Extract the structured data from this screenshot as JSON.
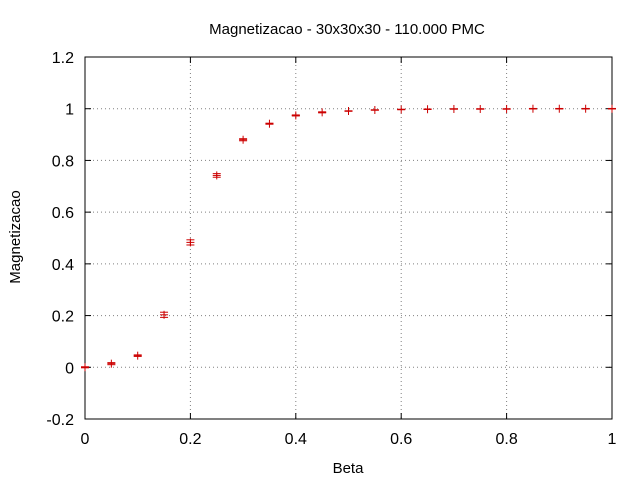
{
  "chart_data": {
    "type": "scatter",
    "title": "Magnetizacao - 30x30x30 - 110.000 PMC",
    "xlabel": "Beta",
    "ylabel": "Magnetizacao",
    "xlim": [
      0,
      1
    ],
    "ylim": [
      -0.2,
      1.2
    ],
    "x_ticks": [
      0,
      0.2,
      0.4,
      0.6,
      0.8,
      1
    ],
    "x_tick_labels": [
      "0",
      "0.2",
      "0.4",
      "0.6",
      "0.8",
      "1"
    ],
    "y_ticks": [
      -0.2,
      0,
      0.2,
      0.4,
      0.6,
      0.8,
      1,
      1.2
    ],
    "y_tick_labels": [
      "-0.2",
      "0",
      "0.2",
      "0.4",
      "0.6",
      "0.8",
      "1",
      "1.2"
    ],
    "grid": true,
    "grid_style": "dotted",
    "error_bars": true,
    "marker": "plus",
    "color": "#cc0000",
    "points": [
      {
        "x": 0.0,
        "y": 0.0,
        "err": 0.002
      },
      {
        "x": 0.05,
        "y": 0.014,
        "err": 0.004
      },
      {
        "x": 0.1,
        "y": 0.045,
        "err": 0.003
      },
      {
        "x": 0.15,
        "y": 0.203,
        "err": 0.01
      },
      {
        "x": 0.2,
        "y": 0.483,
        "err": 0.01
      },
      {
        "x": 0.25,
        "y": 0.742,
        "err": 0.007
      },
      {
        "x": 0.3,
        "y": 0.88,
        "err": 0.004
      },
      {
        "x": 0.35,
        "y": 0.942,
        "err": 0.002
      },
      {
        "x": 0.4,
        "y": 0.974,
        "err": 0.002
      },
      {
        "x": 0.45,
        "y": 0.986,
        "err": 0.002
      },
      {
        "x": 0.5,
        "y": 0.991,
        "err": 0.001
      },
      {
        "x": 0.55,
        "y": 0.995,
        "err": 0.001
      },
      {
        "x": 0.6,
        "y": 0.997,
        "err": 0.001
      },
      {
        "x": 0.65,
        "y": 0.998,
        "err": 0.001
      },
      {
        "x": 0.7,
        "y": 0.999,
        "err": 0.001
      },
      {
        "x": 0.75,
        "y": 0.999,
        "err": 0.001
      },
      {
        "x": 0.8,
        "y": 0.999,
        "err": 0.001
      },
      {
        "x": 0.85,
        "y": 1.0,
        "err": 0.001
      },
      {
        "x": 0.9,
        "y": 1.0,
        "err": 0.001
      },
      {
        "x": 0.95,
        "y": 1.0,
        "err": 0.001
      },
      {
        "x": 1.0,
        "y": 1.0,
        "err": 0.001
      }
    ]
  }
}
